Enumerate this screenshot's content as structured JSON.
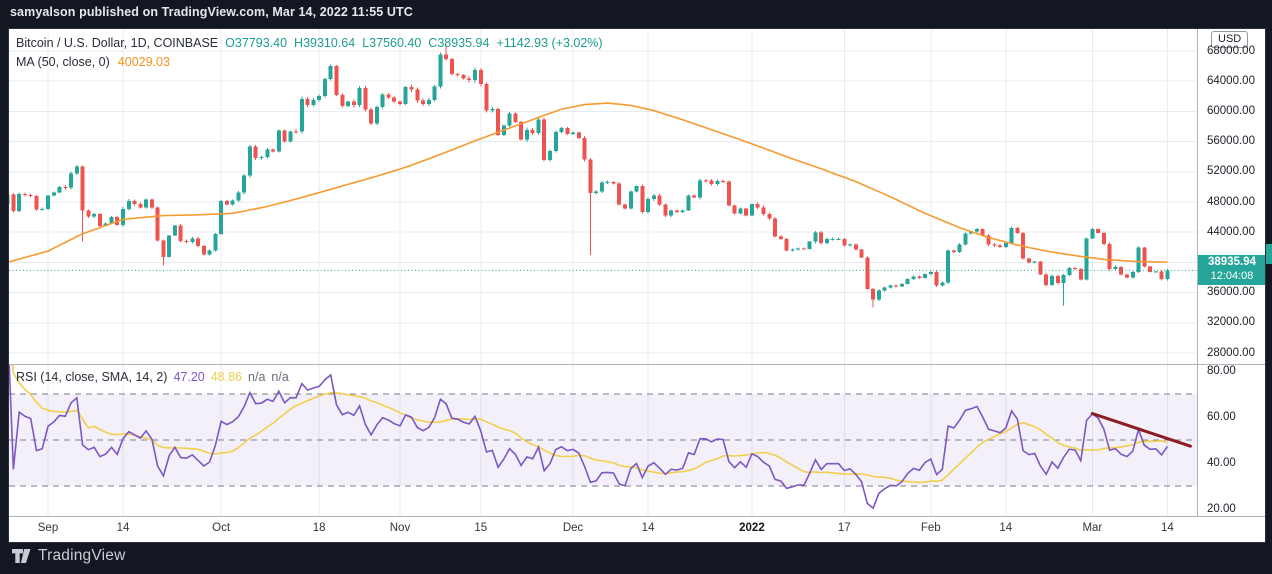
{
  "top_bar": {
    "text": "samyalson published on TradingView.com, Mar 14, 2022 11:55 UTC"
  },
  "footer": {
    "brand": "TradingView"
  },
  "legend": {
    "symbol": "Bitcoin / U.S. Dollar, 1D, COINBASE",
    "open_label": "O",
    "open": "37793.40",
    "high_label": "H",
    "high": "39310.64",
    "low_label": "L",
    "low": "37560.40",
    "close_label": "C",
    "close": "38935.94",
    "change": "+1142.93 (+3.02%)",
    "ma_label": "MA (50, close, 0)",
    "ma_value": "40029.03"
  },
  "rsi_legend": {
    "label": "RSI (14, close, SMA, 14, 2)",
    "rsi_value": "47.20",
    "sma_value": "48.86",
    "na1": "n/a",
    "na2": "n/a"
  },
  "price_axis": {
    "currency": "USD",
    "labels": [
      "68000.00",
      "64000.00",
      "60000.00",
      "56000.00",
      "52000.00",
      "48000.00",
      "44000.00",
      "40000.00",
      "36000.00",
      "32000.00",
      "28000.00"
    ],
    "badge": {
      "price": "38935.94",
      "countdown": "12:04:08"
    }
  },
  "rsi_axis_labels": [
    "80.00",
    "60.00",
    "40.00",
    "20.00"
  ],
  "colors": {
    "up": "#26a69a",
    "down": "#ef5350",
    "ma": "#f79a2f",
    "rsi": "#7e57c2",
    "rsi_sma": "#f2cf4d",
    "band_line": "#7b7f8a",
    "band_fill": "#7e57c2",
    "grid": "#e7ebf1",
    "trendline": "#8b1e25",
    "price_line": "#26a69a"
  },
  "chart_data": [
    {
      "type": "candlestick",
      "title": "Bitcoin / U.S. Dollar, 1D, COINBASE",
      "ylabel": "USD",
      "ylim": [
        26600,
        71000
      ],
      "y_ticks": [
        68000,
        64000,
        60000,
        56000,
        52000,
        48000,
        44000,
        40000,
        36000,
        32000,
        28000
      ],
      "grid": true,
      "closes": [
        47700,
        48970,
        46830,
        49070,
        48900,
        48800,
        46990,
        47100,
        48830,
        49280,
        49990,
        49930,
        51790,
        52670,
        46860,
        46060,
        46400,
        44850,
        45170,
        46030,
        44950,
        47100,
        48150,
        47740,
        47300,
        48300,
        47260,
        42900,
        40720,
        43560,
        44880,
        42840,
        42700,
        43180,
        42170,
        41050,
        41550,
        43790,
        48160,
        47660,
        48230,
        49240,
        51490,
        55340,
        53800,
        53960,
        54950,
        54690,
        57480,
        56000,
        57370,
        57350,
        61670,
        60870,
        61530,
        62030,
        64290,
        66000,
        62200,
        60690,
        61290,
        60850,
        63080,
        60280,
        58420,
        60580,
        62250,
        61860,
        61300,
        60950,
        63220,
        62900,
        61430,
        60950,
        61520,
        63280,
        67550,
        66950,
        64940,
        64800,
        64380,
        64150,
        65500,
        63600,
        60100,
        60350,
        56900,
        58100,
        59750,
        58620,
        56250,
        57550,
        57150,
        58960,
        53570,
        54750,
        57270,
        57780,
        57000,
        57200,
        56480,
        53600,
        49200,
        49400,
        50580,
        50640,
        50480,
        47660,
        47150,
        49390,
        50100,
        46700,
        48370,
        48860,
        47650,
        46180,
        46850,
        46700,
        46900,
        48890,
        48600,
        50830,
        50820,
        50400,
        50780,
        50700,
        47550,
        46470,
        47130,
        46210,
        47730,
        47300,
        46440,
        45840,
        43450,
        43100,
        41560,
        41690,
        41860,
        41780,
        42740,
        43950,
        42580,
        43100,
        43100,
        43110,
        42250,
        42370,
        41680,
        40680,
        36460,
        35070,
        36280,
        36660,
        36950,
        36840,
        37160,
        37780,
        38160,
        37920,
        38480,
        38740,
        36940,
        37310,
        41570,
        41380,
        42400,
        43840,
        44080,
        44420,
        43530,
        42400,
        42230,
        42070,
        42540,
        44580,
        43890,
        40520,
        39970,
        40100,
        38380,
        37020,
        38230,
        37250,
        38330,
        39230,
        39120,
        37710,
        43190,
        44420,
        43890,
        42460,
        39140,
        39400,
        38420,
        38020,
        38730,
        41950,
        39440,
        38730,
        38800,
        37790,
        38936
      ],
      "default_wick_pct": 0.4,
      "wick_overrides": {
        "14": {
          "low": 42800
        },
        "28": {
          "low": 39600
        },
        "77": {
          "high": 68900
        },
        "102": {
          "low": 41000
        },
        "151": {
          "low": 34050
        },
        "184": {
          "low": 34300
        }
      },
      "x_ticks": [
        {
          "label": "Sep",
          "i": 8
        },
        {
          "label": "14",
          "i": 21
        },
        {
          "label": "Oct",
          "i": 38
        },
        {
          "label": "18",
          "i": 55
        },
        {
          "label": "Nov",
          "i": 69
        },
        {
          "label": "15",
          "i": 83
        },
        {
          "label": "Dec",
          "i": 99
        },
        {
          "label": "14",
          "i": 112
        },
        {
          "label": "2022",
          "i": 130,
          "bold": true
        },
        {
          "label": "17",
          "i": 146
        },
        {
          "label": "Feb",
          "i": 161
        },
        {
          "label": "14",
          "i": 174
        },
        {
          "label": "Mar",
          "i": 189
        },
        {
          "label": "14",
          "i": 202
        }
      ],
      "last_price_line": 38935.94,
      "series": [
        {
          "name": "MA (50, close, 0)",
          "type": "line",
          "current_value": 40029.03,
          "anchors": [
            [
              0,
              39800
            ],
            [
              8,
              41500
            ],
            [
              14,
              43800
            ],
            [
              21,
              45700
            ],
            [
              28,
              46200
            ],
            [
              34,
              46300
            ],
            [
              40,
              46500
            ],
            [
              46,
              47400
            ],
            [
              52,
              48600
            ],
            [
              58,
              49900
            ],
            [
              64,
              51200
            ],
            [
              70,
              52600
            ],
            [
              76,
              54300
            ],
            [
              82,
              56100
            ],
            [
              88,
              57800
            ],
            [
              93,
              59200
            ],
            [
              97,
              60300
            ],
            [
              101,
              60900
            ],
            [
              105,
              61100
            ],
            [
              109,
              60800
            ],
            [
              113,
              60100
            ],
            [
              118,
              58900
            ],
            [
              124,
              57300
            ],
            [
              130,
              55700
            ],
            [
              136,
              54000
            ],
            [
              142,
              52400
            ],
            [
              148,
              50700
            ],
            [
              154,
              48700
            ],
            [
              160,
              46500
            ],
            [
              166,
              44600
            ],
            [
              171,
              43300
            ],
            [
              176,
              42300
            ],
            [
              181,
              41500
            ],
            [
              186,
              40900
            ],
            [
              191,
              40400
            ],
            [
              196,
              40150
            ],
            [
              202,
              40030
            ]
          ]
        }
      ]
    },
    {
      "type": "line",
      "title": "RSI (14, close, SMA, 14, 2)",
      "ylim": [
        17,
        83
      ],
      "band_levels": [
        70,
        50,
        30
      ],
      "band_fill_range": [
        70,
        30
      ],
      "derived_from": "RSI(14) of candlestick closes; SMA(14) of RSI",
      "current": {
        "rsi": 47.2,
        "sma": 48.86
      },
      "trendline": {
        "from": {
          "day": 189,
          "value": 61.5
        },
        "to": {
          "day": 206,
          "value": 47.3
        }
      }
    }
  ]
}
